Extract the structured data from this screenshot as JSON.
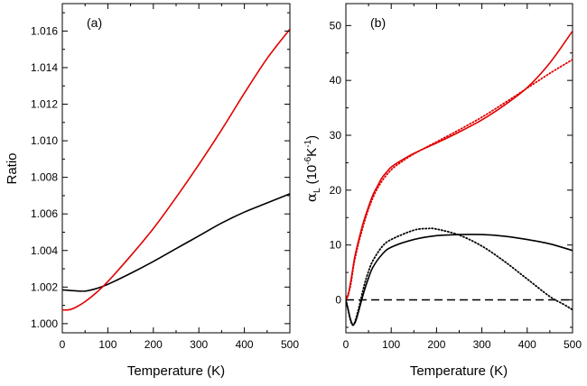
{
  "chart_data": [
    {
      "type": "line",
      "panel_label": "(a)",
      "xlabel": "Temperature (K)",
      "ylabel": "Ratio",
      "xlim": [
        0,
        500
      ],
      "ylim": [
        0.9995,
        1.0175
      ],
      "xticks": [
        0,
        100,
        200,
        300,
        400,
        500
      ],
      "yticks": [
        1.0,
        1.002,
        1.004,
        1.006,
        1.008,
        1.01,
        1.012,
        1.014,
        1.016
      ],
      "ytick_labels": [
        "1.000",
        "1.002",
        "1.004",
        "1.006",
        "1.008",
        "1.010",
        "1.012",
        "1.014",
        "1.016"
      ],
      "series": [
        {
          "name": "black",
          "color": "#000000",
          "style": "solid",
          "x": [
            0,
            25,
            50,
            75,
            100,
            150,
            200,
            250,
            300,
            350,
            400,
            450,
            500
          ],
          "y": [
            1.00185,
            1.0018,
            1.00178,
            1.00192,
            1.00215,
            1.00275,
            1.0034,
            1.0041,
            1.0048,
            1.0055,
            1.0061,
            1.0066,
            1.0071
          ]
        },
        {
          "name": "red",
          "color": "#e00000",
          "style": "solid",
          "x": [
            0,
            15,
            30,
            50,
            75,
            100,
            150,
            200,
            250,
            300,
            350,
            400,
            450,
            500
          ],
          "y": [
            1.00075,
            1.00076,
            1.0009,
            1.0012,
            1.0017,
            1.0023,
            1.0037,
            1.0052,
            1.0069,
            1.0087,
            1.0106,
            1.0126,
            1.0145,
            1.0161
          ]
        }
      ]
    },
    {
      "type": "line",
      "panel_label": "(b)",
      "xlabel": "Temperature (K)",
      "ylabel_symbol": "α",
      "ylabel_sub": "L",
      "ylabel_unit": "(10",
      "ylabel_exp1": "-6",
      "ylabel_mid": "K",
      "ylabel_exp2": "-1",
      "ylabel_end": ")",
      "xlim": [
        0,
        500
      ],
      "ylim": [
        -6,
        54
      ],
      "xticks": [
        0,
        100,
        200,
        300,
        400,
        500
      ],
      "yticks": [
        0,
        10,
        20,
        30,
        40,
        50
      ],
      "series": [
        {
          "name": "red-solid",
          "color": "#e00000",
          "style": "solid",
          "x": [
            0,
            5,
            10,
            15,
            20,
            30,
            40,
            50,
            60,
            70,
            80,
            90,
            100,
            120,
            150,
            200,
            250,
            300,
            350,
            400,
            450,
            500
          ],
          "y": [
            0,
            0.8,
            3.0,
            5.5,
            8.0,
            11.5,
            14.5,
            17.0,
            19.2,
            20.8,
            22.3,
            23.3,
            24.2,
            25.3,
            26.7,
            28.6,
            30.6,
            32.8,
            35.5,
            38.7,
            43.2,
            49
          ]
        },
        {
          "name": "red-dotted",
          "color": "#e00000",
          "style": "dotted",
          "x": [
            0,
            10,
            20,
            40,
            60,
            80,
            100,
            120,
            150,
            200,
            250,
            300,
            350,
            400,
            450,
            500
          ],
          "y": [
            0,
            2.5,
            7.5,
            14.0,
            18.7,
            21.7,
            23.7,
            25.0,
            26.6,
            28.8,
            31.0,
            33.3,
            35.9,
            38.6,
            41.3,
            43.8
          ]
        },
        {
          "name": "black-solid",
          "color": "#000000",
          "style": "solid",
          "x": [
            0,
            5,
            10,
            15,
            20,
            25,
            30,
            40,
            50,
            60,
            80,
            100,
            150,
            200,
            250,
            300,
            350,
            400,
            450,
            500
          ],
          "y": [
            0,
            -1.8,
            -3.5,
            -4.5,
            -4.2,
            -3.0,
            -1.5,
            1.5,
            4.0,
            6.0,
            8.3,
            9.6,
            11.0,
            11.7,
            11.9,
            11.9,
            11.6,
            11.0,
            10.2,
            9.0
          ]
        },
        {
          "name": "black-dotted",
          "color": "#000000",
          "style": "dotted",
          "x": [
            0,
            5,
            10,
            15,
            20,
            30,
            40,
            50,
            60,
            80,
            100,
            150,
            180,
            200,
            250,
            300,
            350,
            400,
            450,
            480,
            500
          ],
          "y": [
            0,
            -1.8,
            -3.7,
            -4.6,
            -4.0,
            -1.0,
            2.5,
            5.2,
            7.2,
            9.7,
            11.0,
            12.7,
            13.0,
            12.9,
            11.8,
            9.8,
            7.0,
            3.8,
            0.6,
            -0.8,
            -1.8
          ]
        },
        {
          "name": "zero-dashed",
          "color": "#000000",
          "style": "dashed",
          "x": [
            0,
            500
          ],
          "y": [
            0,
            0
          ]
        }
      ]
    }
  ]
}
